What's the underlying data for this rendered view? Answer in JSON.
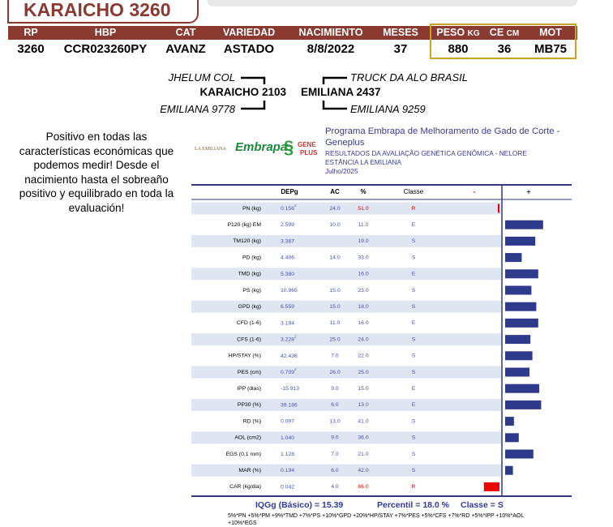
{
  "header": {
    "title": "KARAICHO 3260",
    "columns": [
      {
        "label": "RP",
        "value": "3260"
      },
      {
        "label": "HBP",
        "value": "CCR023260PY"
      },
      {
        "label": "CAT",
        "value": "AVANZ"
      },
      {
        "label": "VARIEDAD",
        "value": "ASTADO"
      },
      {
        "label": "NACIMIENTO",
        "value": "8/8/2022"
      },
      {
        "label": "MESES",
        "value": "37"
      }
    ],
    "measure_columns": [
      {
        "label": "PESO",
        "unit": "KG",
        "value": "880"
      },
      {
        "label": "CE",
        "unit": "CM",
        "value": "36"
      },
      {
        "label": "MOT",
        "value": "MB75"
      }
    ]
  },
  "pedigree": {
    "sire_sire": "JHELUM COL",
    "sire": "KARAICHO 2103",
    "sire_dam": "EMILIANA 9778",
    "dam_sire": "TRUCK DA ALO BRASIL",
    "dam": "EMILIANA 2437",
    "dam_dam": "EMILIANA 9259"
  },
  "description": "Positivo en todas las características económicas que podemos medir! Desde el nacimiento hasta el sobreaño positivo y equilibrado en toda la evaluación!",
  "evaluation": {
    "logos": {
      "farm": "LA EMILIANA",
      "embrapa": "Embrapa",
      "gene": "GENE",
      "plus": "PLUS"
    },
    "program": "Programa Embrapa de Melhoramento de Gado de Corte - Geneplus",
    "result": "RESULTADOS DA AVALIAÇÃO GENÉTICA GENÔMICA - NELORE",
    "farm": "ESTÂNCIA LA EMILIANA",
    "date": "Julho/2025",
    "table": {
      "headers": {
        "dep": "DEPg",
        "ac": "AC",
        "pct": "%",
        "classe": "Classe",
        "minus": "-",
        "plus": "+"
      },
      "rows": [
        {
          "trait": "PN (kg)",
          "dep": "0.156",
          "sup": "2",
          "ac": "24.0",
          "pct": "51.0",
          "classe": "R"
        },
        {
          "trait": "P120 (kg) EM",
          "dep": "2.599",
          "ac": "10.0",
          "pct": "11.0",
          "classe": "E"
        },
        {
          "trait": "TM120 (kg)",
          "dep": "3.387",
          "ac": null,
          "pct": "19.0",
          "classe": "S"
        },
        {
          "trait": "PD (kg)",
          "dep": "4.406",
          "ac": "14.0",
          "pct": "33.0",
          "classe": "S"
        },
        {
          "trait": "TMD (kg)",
          "dep": "5.380",
          "ac": null,
          "pct": "16.0",
          "classe": "E"
        },
        {
          "trait": "PS (kg)",
          "dep": "10.965",
          "ac": "15.0",
          "pct": "23.0",
          "classe": "S"
        },
        {
          "trait": "GPD (kg)",
          "dep": "6.559",
          "ac": "15.0",
          "pct": "18.0",
          "classe": "S"
        },
        {
          "trait": "CFD (1-6)",
          "dep": "3.194",
          "ac": "11.0",
          "pct": "16.0",
          "classe": "E"
        },
        {
          "trait": "CFS (1-6)",
          "dep": "3.228",
          "sup": "2",
          "ac": "25.0",
          "pct": "24.0",
          "classe": "S"
        },
        {
          "trait": "HP/STAY (%)",
          "dep": "42.436",
          "ac": "7.0",
          "pct": "22.0",
          "classe": "S"
        },
        {
          "trait": "PES (cm)",
          "dep": "0.709",
          "sup": "2",
          "ac": "26.0",
          "pct": "25.0",
          "classe": "S"
        },
        {
          "trait": "IPP (dias)",
          "dep": "-15.913",
          "ac": "9.0",
          "pct": "15.0",
          "classe": "E"
        },
        {
          "trait": "PP30 (%)",
          "dep": "39.186",
          "ac": "6.0",
          "pct": "13.0",
          "classe": "E"
        },
        {
          "trait": "RD (%)",
          "dep": "0.097",
          "ac": "13.0",
          "pct": "41.0",
          "classe": "S"
        },
        {
          "trait": "AOL (cm2)",
          "dep": "1.040",
          "ac": "9.0",
          "pct": "36.0",
          "classe": "S"
        },
        {
          "trait": "EGS (0,1 mm)",
          "dep": "1.128",
          "ac": "7.0",
          "pct": "21.0",
          "classe": "S"
        },
        {
          "trait": "MAR (%)",
          "dep": "0.194",
          "ac": "6.0",
          "pct": "42.0",
          "classe": "S"
        },
        {
          "trait": "CAR (kg/dia)",
          "dep": "0.042",
          "ac": "4.0",
          "pct": "66.0",
          "classe": "R"
        }
      ]
    },
    "summary": {
      "iqg": "IQGg (Básico) = 15.39",
      "percentil": "Percentil = 18.0 %",
      "classe": "Classe = S"
    },
    "formula": "5%*PN +5%*PM +9%*TMD +7%*PS +10%*GPD +20%*HP/STAY +7%*PES +5%*CFS +7%*RD +5%*IPP +10%*AOL +10%*EGS"
  }
}
